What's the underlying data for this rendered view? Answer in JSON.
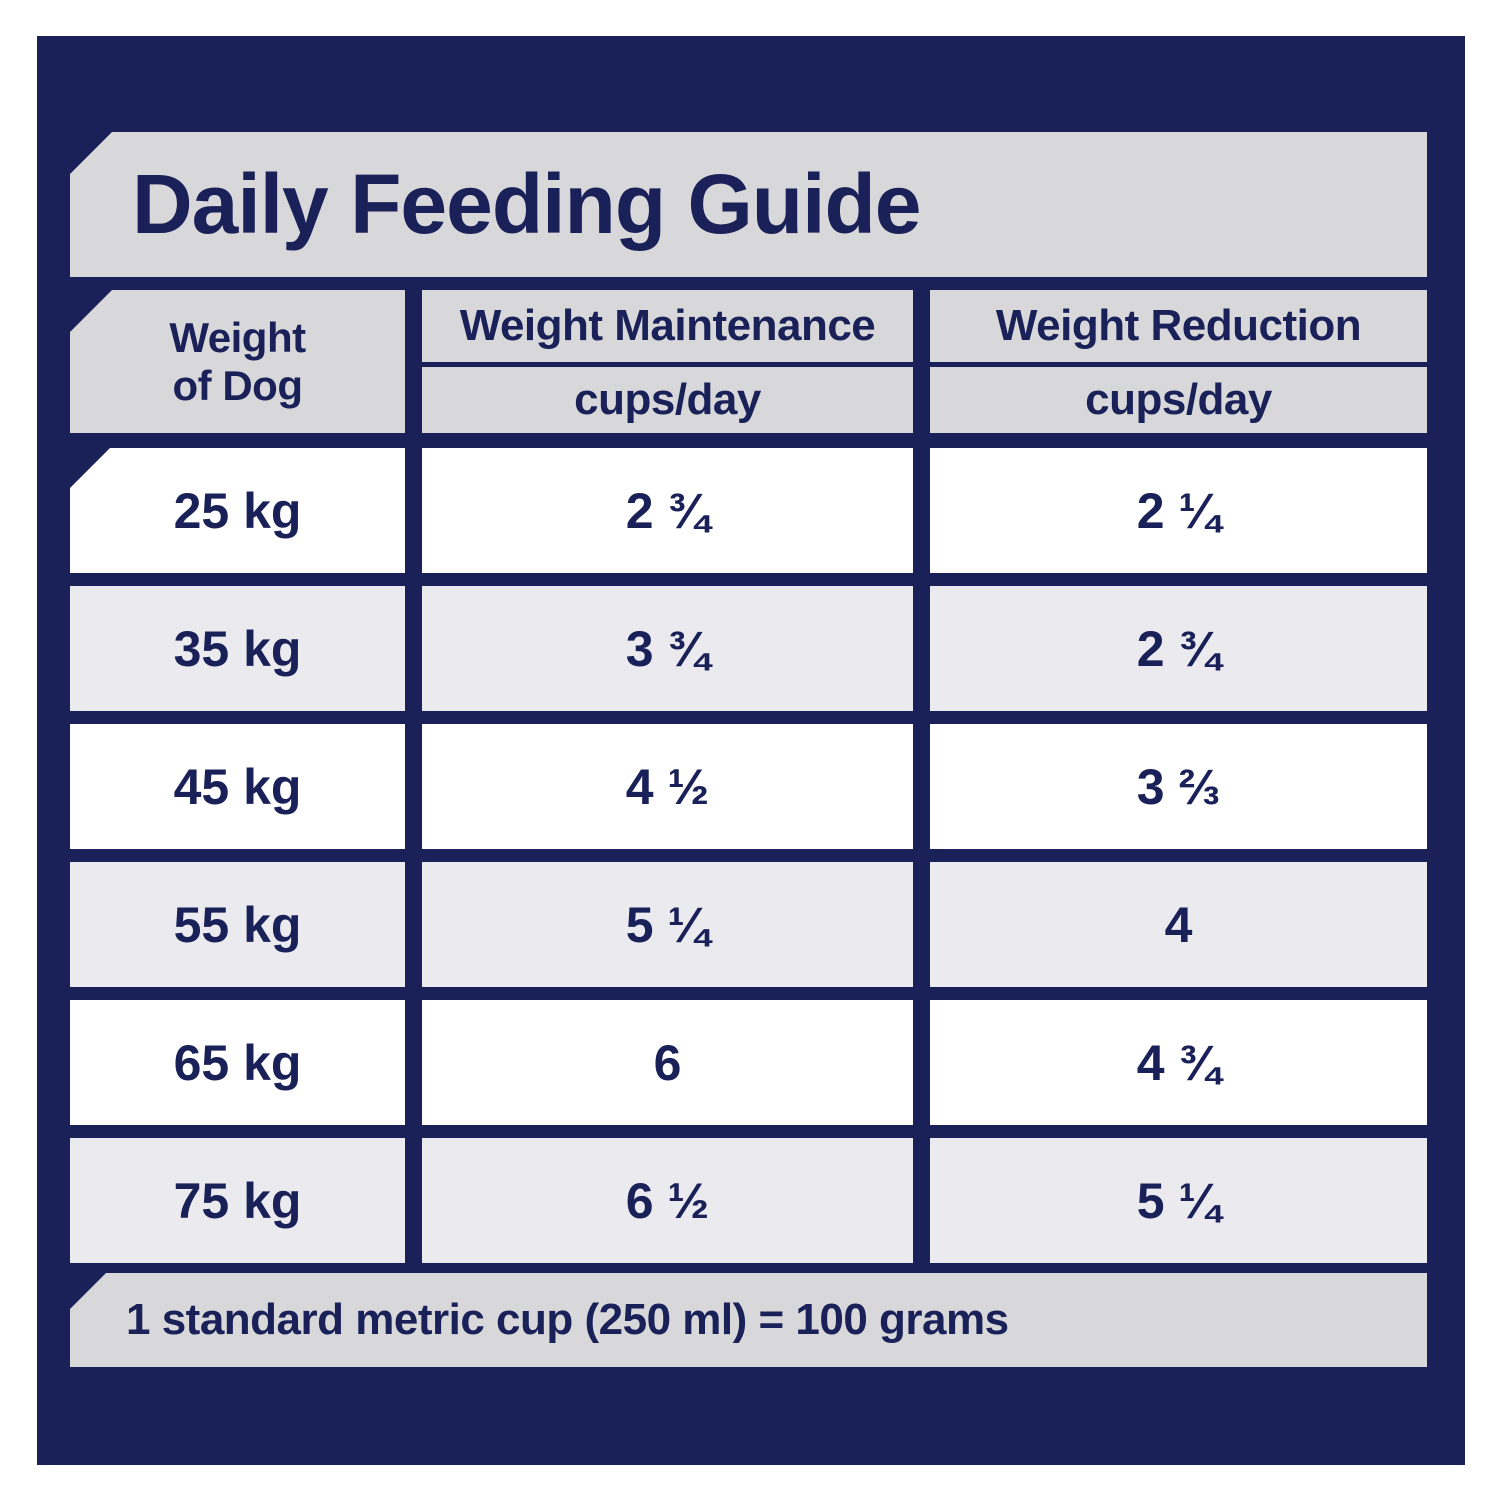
{
  "title": "Daily Feeding Guide",
  "colors": {
    "navy": "#1a2158",
    "banner_gray": "#d8d8da",
    "row_alt_gray": "#ebebef",
    "row_white": "#ffffff"
  },
  "table": {
    "weight_header": {
      "line1": "Weight",
      "line2": "of Dog"
    },
    "columns": [
      {
        "label": "Weight Maintenance",
        "unit": "cups/day"
      },
      {
        "label": "Weight Reduction",
        "unit": "cups/day"
      }
    ],
    "rows": [
      {
        "weight": "25 kg",
        "maintenance": "2 ¾",
        "reduction": "2 ¼"
      },
      {
        "weight": "35 kg",
        "maintenance": "3 ¾",
        "reduction": "2 ¾"
      },
      {
        "weight": "45 kg",
        "maintenance": "4 ½",
        "reduction": "3 ⅔"
      },
      {
        "weight": "55 kg",
        "maintenance": "5 ¼",
        "reduction": "4"
      },
      {
        "weight": "65 kg",
        "maintenance": "6",
        "reduction": "4 ¾"
      },
      {
        "weight": "75 kg",
        "maintenance": "6 ½",
        "reduction": "5 ¼"
      }
    ]
  },
  "footnote": "1 standard metric cup (250 ml) = 100 grams"
}
